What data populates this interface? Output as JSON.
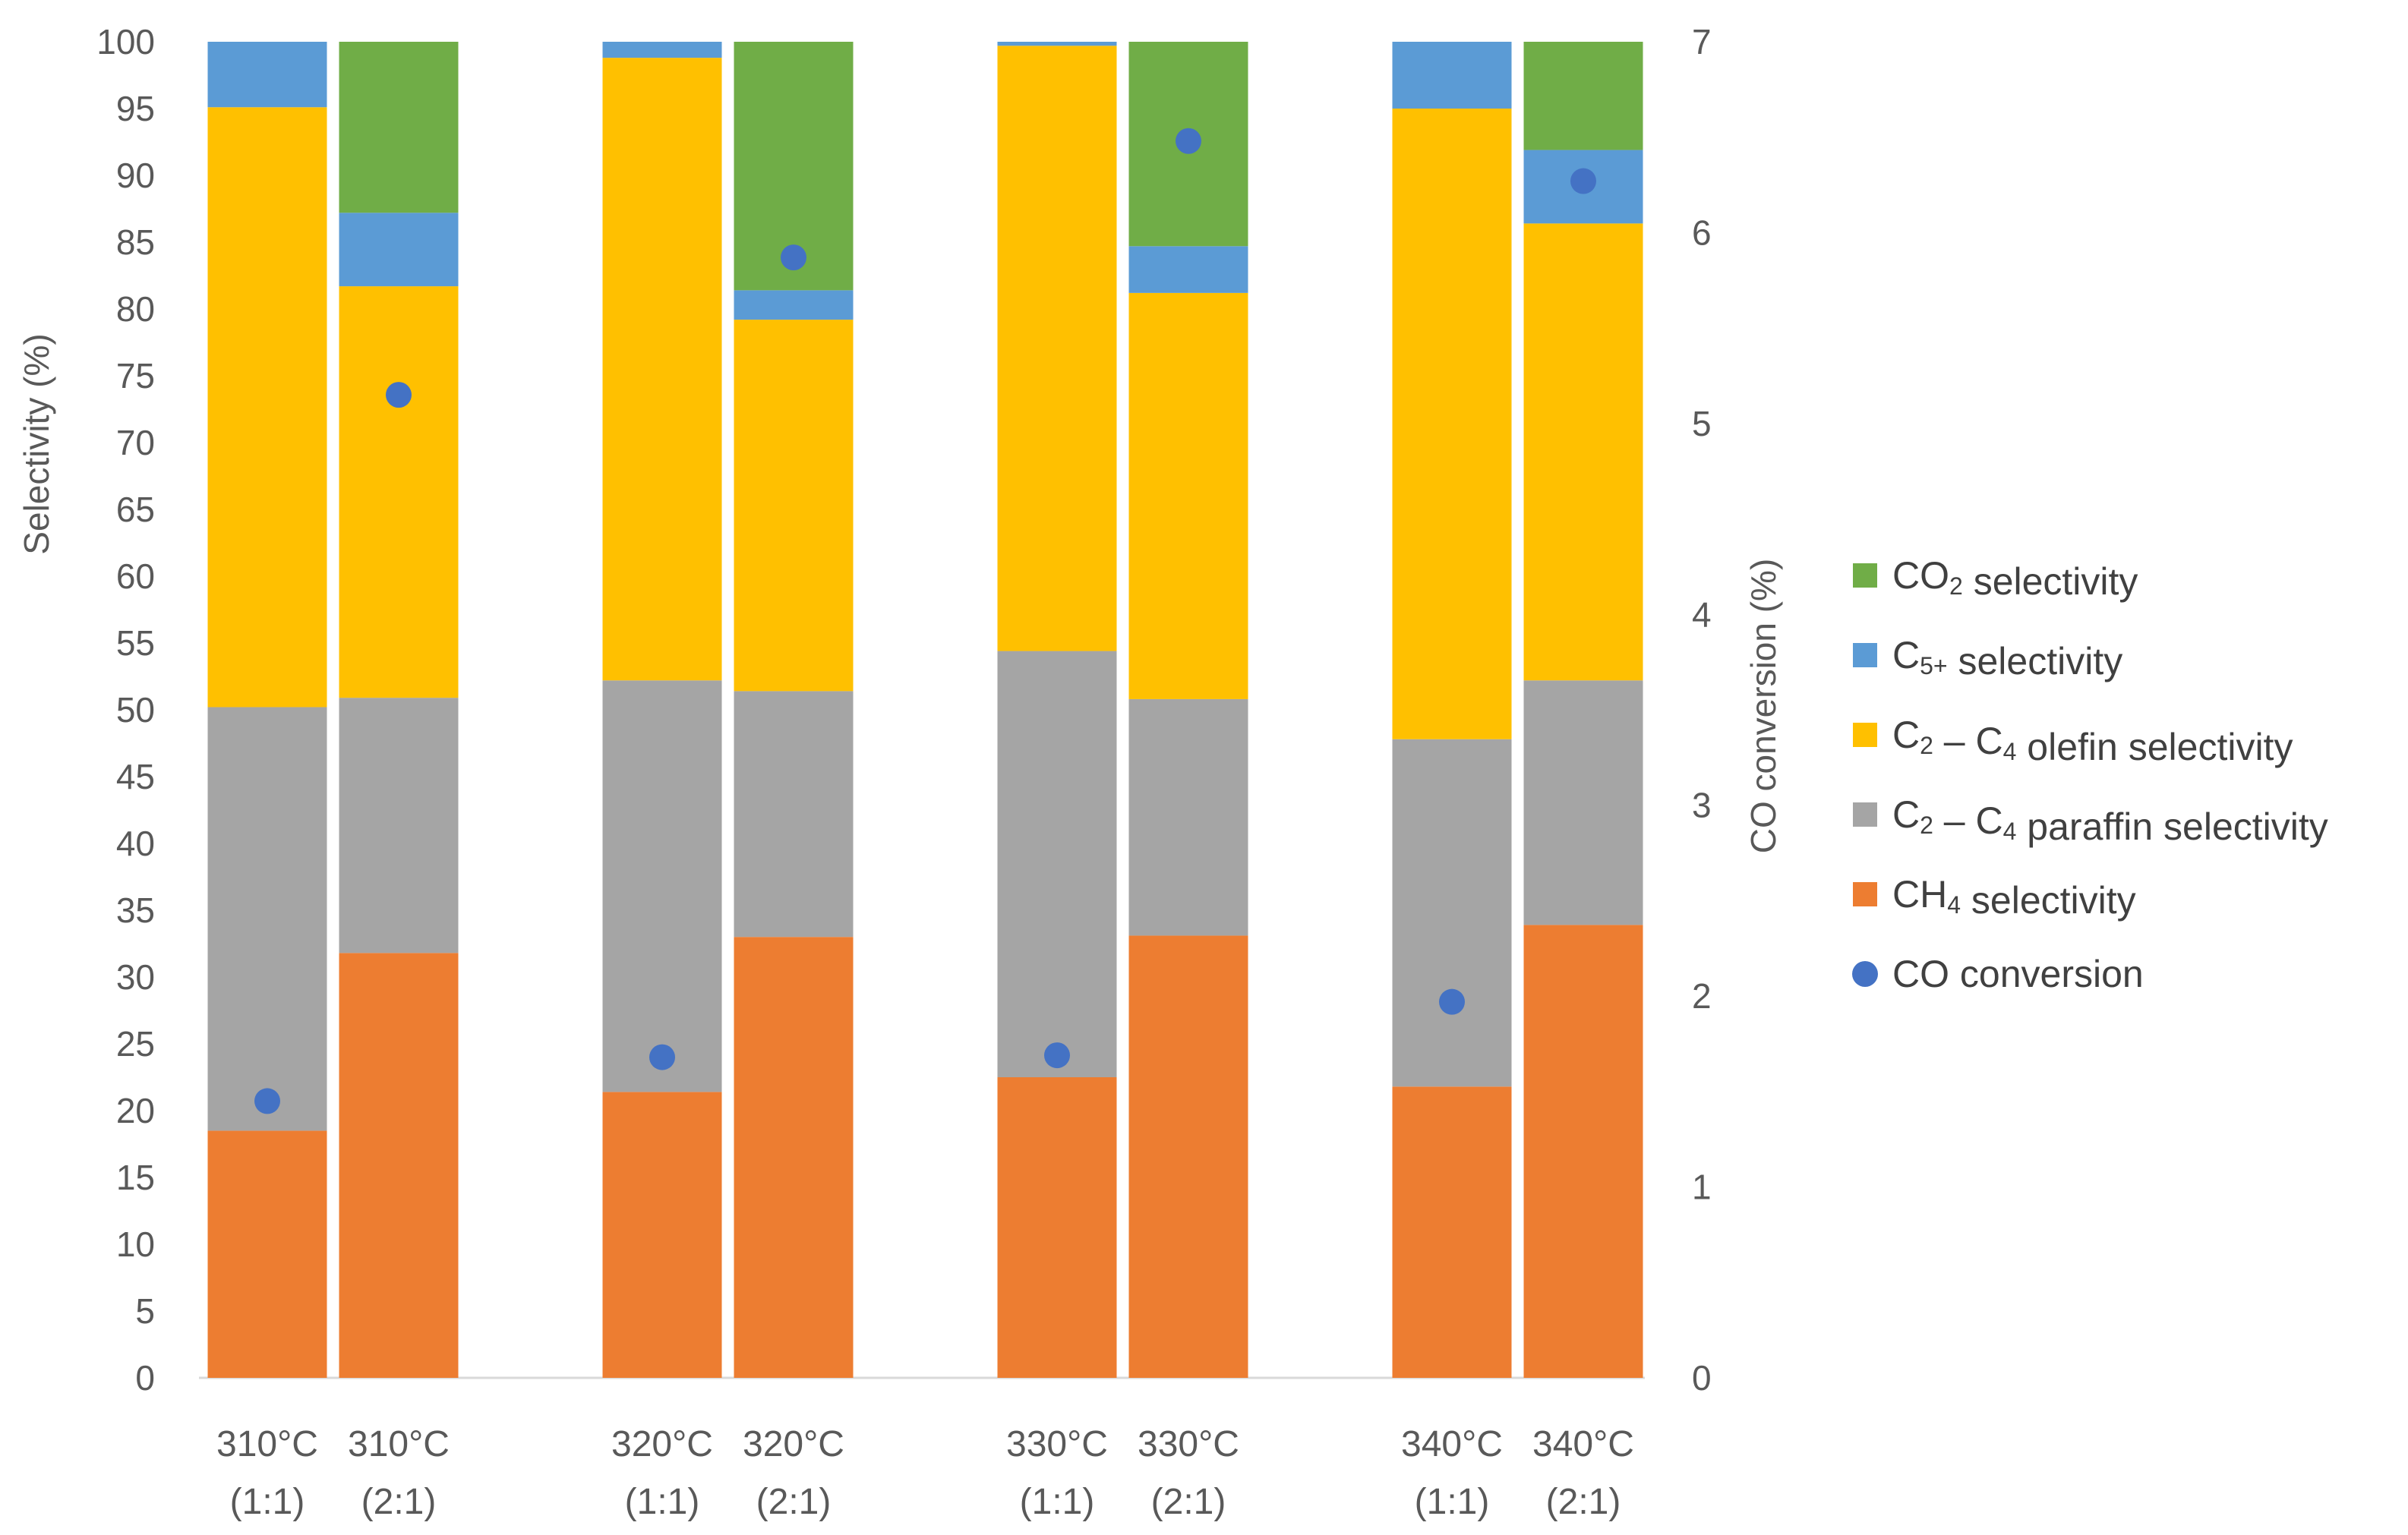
{
  "chart_data": {
    "type": "bar",
    "stacked": true,
    "title": "",
    "xlabel": "",
    "ylabel": "Selectivity (%)",
    "y2label": "CO conversion (%)",
    "ylim": [
      0,
      100
    ],
    "yticks": [
      "0",
      "5",
      "10",
      "15",
      "20",
      "25",
      "30",
      "35",
      "40",
      "45",
      "50",
      "55",
      "60",
      "65",
      "70",
      "75",
      "80",
      "85",
      "90",
      "95",
      "100"
    ],
    "y2lim": [
      0,
      7
    ],
    "y2ticks": [
      "0",
      "1",
      "2",
      "3",
      "4",
      "5",
      "6",
      "7"
    ],
    "categories": [
      {
        "line1": "310°C",
        "line2": "(1:1)"
      },
      {
        "line1": "310°C",
        "line2": "(2:1)"
      },
      {
        "line1": "320°C",
        "line2": "(1:1)"
      },
      {
        "line1": "320°C",
        "line2": "(2:1)"
      },
      {
        "line1": "330°C",
        "line2": "(1:1)"
      },
      {
        "line1": "330°C",
        "line2": "(2:1)"
      },
      {
        "line1": "340°C",
        "line2": "(1:1)"
      },
      {
        "line1": "340°C",
        "line2": "(2:1)"
      }
    ],
    "series": [
      {
        "name": "CH4 selectivity",
        "legend": [
          {
            "t": "CH"
          },
          {
            "t": "4",
            "sub": true
          },
          {
            "t": " selectivity"
          }
        ],
        "color": "#ED7D31",
        "values": [
          18.5,
          31.8,
          21.4,
          33.0,
          22.5,
          33.1,
          21.8,
          33.9
        ]
      },
      {
        "name": "C2 – C4 paraffin selectivity",
        "legend": [
          {
            "t": "C"
          },
          {
            "t": "2",
            "sub": true
          },
          {
            "t": " – C"
          },
          {
            "t": "4",
            "sub": true
          },
          {
            "t": " paraffin selectivity"
          }
        ],
        "color": "#A5A5A5",
        "values": [
          31.7,
          19.1,
          30.8,
          18.4,
          31.9,
          17.7,
          26.0,
          18.3
        ]
      },
      {
        "name": "C2 – C4 olefin selectivity",
        "legend": [
          {
            "t": "C"
          },
          {
            "t": "2",
            "sub": true
          },
          {
            "t": " – C"
          },
          {
            "t": "4",
            "sub": true
          },
          {
            "t": " olefin selectivity"
          }
        ],
        "color": "#FFC000",
        "values": [
          44.9,
          30.8,
          46.6,
          27.8,
          45.3,
          30.4,
          47.2,
          34.2
        ]
      },
      {
        "name": "C5+ selectivity",
        "legend": [
          {
            "t": "C"
          },
          {
            "t": "5+",
            "sub": true
          },
          {
            "t": " selectivity"
          }
        ],
        "color": "#5B9BD5",
        "values": [
          4.9,
          5.5,
          1.2,
          2.2,
          0.3,
          3.5,
          5.0,
          5.5
        ]
      },
      {
        "name": "CO2 selectivity",
        "legend": [
          {
            "t": "CO"
          },
          {
            "t": "2",
            "sub": true
          },
          {
            "t": " selectivity"
          }
        ],
        "color": "#70AD47",
        "values": [
          0,
          12.8,
          0,
          18.6,
          0,
          15.3,
          0,
          8.1
        ]
      }
    ],
    "line_series": {
      "name": "CO conversion",
      "legend": [
        {
          "t": "CO conversion"
        }
      ],
      "color": "#4472C4",
      "axis": "secondary",
      "values": [
        1.45,
        5.15,
        1.68,
        5.87,
        1.69,
        6.48,
        1.97,
        6.27
      ]
    },
    "legend_position": "right",
    "grid": false
  }
}
